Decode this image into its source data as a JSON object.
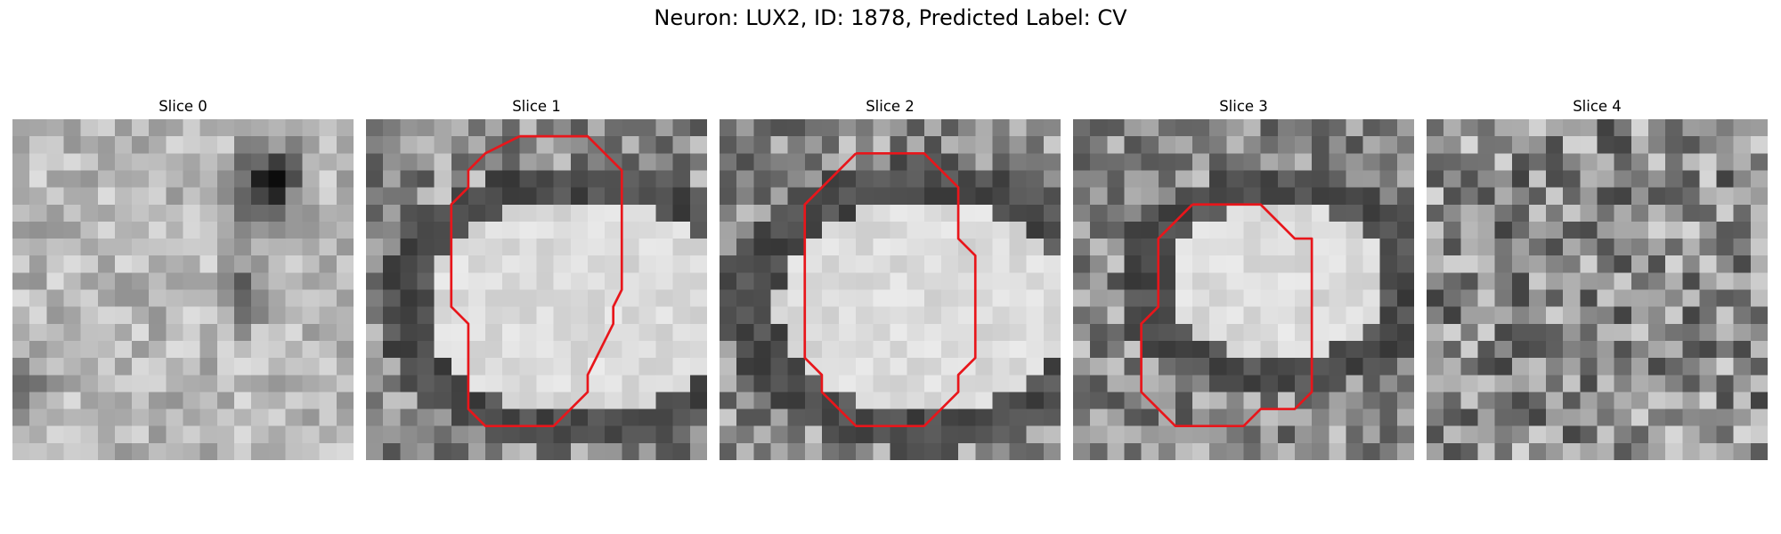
{
  "figure": {
    "title": "Neuron: LUX2, ID: 1878, Predicted Label: CV"
  },
  "colors": {
    "contour": "#e8161b"
  },
  "panels": [
    {
      "title": "Slice 0",
      "seed": 11,
      "type": "slice0",
      "contour": []
    },
    {
      "title": "Slice 1",
      "seed": 23,
      "type": "cell",
      "cell": {
        "cx": 12.5,
        "cy": 11,
        "rx": 9.5,
        "ry": 6.8,
        "ring": 1.7
      },
      "contour": [
        [
          9,
          1
        ],
        [
          13,
          1
        ],
        [
          15,
          3
        ],
        [
          15,
          6
        ],
        [
          15,
          10
        ],
        [
          14.5,
          11
        ],
        [
          14.5,
          12
        ],
        [
          14,
          13
        ],
        [
          13.5,
          14
        ],
        [
          13,
          15
        ],
        [
          13,
          16
        ],
        [
          11,
          18
        ],
        [
          7,
          18
        ],
        [
          6,
          17
        ],
        [
          6,
          12
        ],
        [
          5,
          11
        ],
        [
          5,
          5
        ],
        [
          6,
          4
        ],
        [
          6,
          3
        ],
        [
          7,
          2
        ],
        [
          9,
          1
        ]
      ]
    },
    {
      "title": "Slice 2",
      "seed": 37,
      "type": "cell",
      "cell": {
        "cx": 12,
        "cy": 11,
        "rx": 9.5,
        "ry": 6.8,
        "ring": 1.8
      },
      "contour": [
        [
          8,
          2
        ],
        [
          12,
          2
        ],
        [
          14,
          4
        ],
        [
          14,
          7
        ],
        [
          15,
          8
        ],
        [
          15,
          14
        ],
        [
          14,
          15
        ],
        [
          14,
          16
        ],
        [
          12,
          18
        ],
        [
          8,
          18
        ],
        [
          6,
          16
        ],
        [
          6,
          15
        ],
        [
          5,
          14
        ],
        [
          5,
          5
        ],
        [
          8,
          2
        ]
      ]
    },
    {
      "title": "Slice 3",
      "seed": 53,
      "type": "cell",
      "cell": {
        "cx": 12,
        "cy": 9.5,
        "rx": 7,
        "ry": 5,
        "ring": 1.8
      },
      "contour": [
        [
          7,
          5
        ],
        [
          11,
          5
        ],
        [
          13,
          7
        ],
        [
          14,
          7
        ],
        [
          14,
          16
        ],
        [
          13,
          17
        ],
        [
          11,
          17
        ],
        [
          10,
          18
        ],
        [
          6,
          18
        ],
        [
          5,
          17
        ],
        [
          4,
          16
        ],
        [
          4,
          12
        ],
        [
          5,
          11
        ],
        [
          5,
          7
        ],
        [
          7,
          5
        ]
      ]
    },
    {
      "title": "Slice 4",
      "seed": 71,
      "type": "noise",
      "contour": []
    }
  ]
}
